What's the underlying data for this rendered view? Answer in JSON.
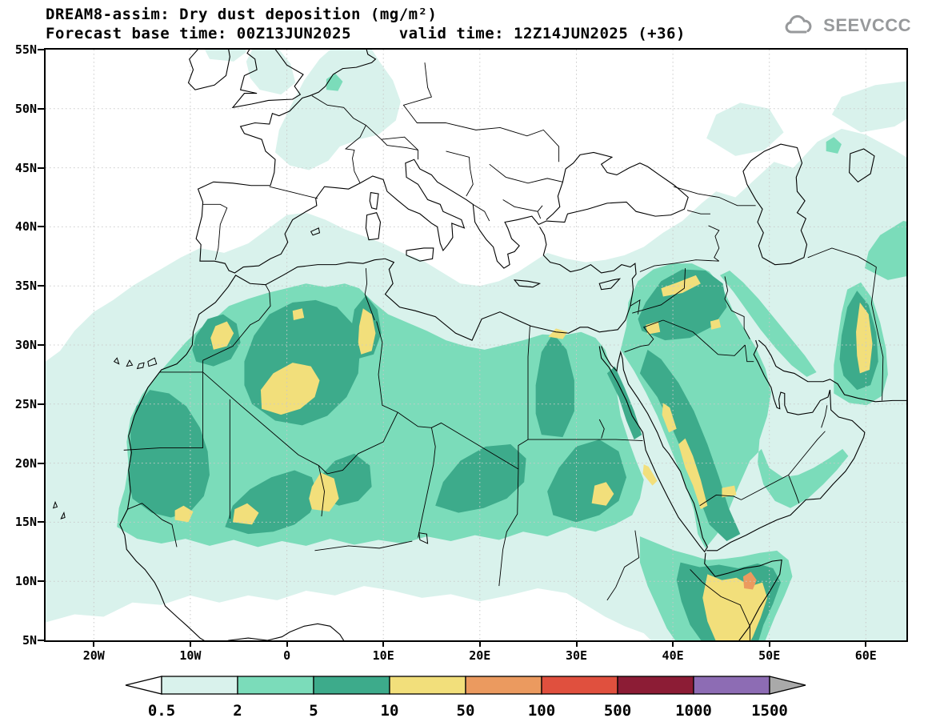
{
  "header": {
    "title": "DREAM8-assim: Dry dust deposition (mg/m²)",
    "subtitle": "Forecast base time: 00Z13JUN2025     valid time: 12Z14JUN2025 (+36)",
    "logo_text": "SEEVCCC"
  },
  "map": {
    "palette": {
      "l1": "#d9f2ec",
      "l2": "#7bdcba",
      "l3": "#3dab8b",
      "l4": "#f2df7b",
      "l5": "#eb9a5f"
    },
    "grid_color": "#c9c9c9",
    "coast_color": "#000000",
    "axes": {
      "lat": {
        "min": 5,
        "max": 55,
        "values": [
          55,
          50,
          45,
          40,
          35,
          30,
          25,
          20,
          15,
          10,
          5
        ],
        "labels": [
          "55N",
          "50N",
          "45N",
          "40N",
          "35N",
          "30N",
          "25N",
          "20N",
          "15N",
          "10N",
          "5N"
        ]
      },
      "lon": {
        "min": -25,
        "max": 64.2,
        "values": [
          -20,
          -10,
          0,
          10,
          20,
          30,
          40,
          50,
          60
        ],
        "labels": [
          "20W",
          "10W",
          "0",
          "10E",
          "20E",
          "30E",
          "40E",
          "50E",
          "60E"
        ]
      }
    }
  },
  "legend": {
    "levels": [
      "0.5",
      "2",
      "5",
      "10",
      "50",
      "100",
      "500",
      "1000",
      "1500"
    ],
    "cell_colors": [
      "#d9f2ec",
      "#7bdcba",
      "#3dab8b",
      "#f2df7b",
      "#eb9a5f",
      "#e0503e",
      "#8c1c35",
      "#8d6cb4"
    ],
    "arrow_left_color": "#ffffff",
    "arrow_right_color": "#a9a9a9"
  }
}
